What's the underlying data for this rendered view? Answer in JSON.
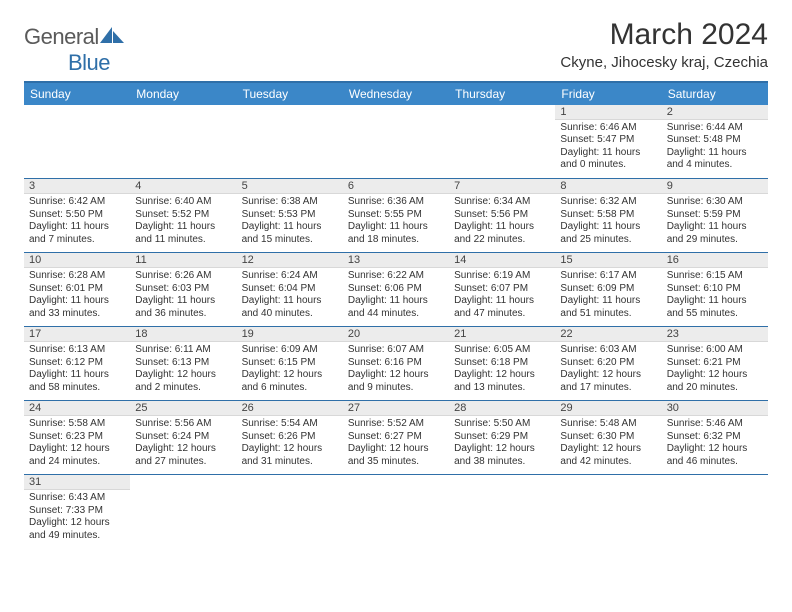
{
  "brand": {
    "text1": "General",
    "text2": "Blue"
  },
  "title": "March 2024",
  "location": "Ckyne, Jihocesky kraj, Czechia",
  "colors": {
    "header_bg": "#3b87c8",
    "header_text": "#ffffff",
    "daynum_bg": "#ececec",
    "rule": "#2f6fa8",
    "text": "#333333",
    "brand_gray": "#5a5a5a",
    "brand_blue": "#2f6fa8"
  },
  "weekdays": [
    "Sunday",
    "Monday",
    "Tuesday",
    "Wednesday",
    "Thursday",
    "Friday",
    "Saturday"
  ],
  "weeks": [
    [
      null,
      null,
      null,
      null,
      null,
      {
        "n": "1",
        "sunrise": "6:46 AM",
        "sunset": "5:47 PM",
        "day_h": "11",
        "day_m": "0"
      },
      {
        "n": "2",
        "sunrise": "6:44 AM",
        "sunset": "5:48 PM",
        "day_h": "11",
        "day_m": "4"
      }
    ],
    [
      {
        "n": "3",
        "sunrise": "6:42 AM",
        "sunset": "5:50 PM",
        "day_h": "11",
        "day_m": "7"
      },
      {
        "n": "4",
        "sunrise": "6:40 AM",
        "sunset": "5:52 PM",
        "day_h": "11",
        "day_m": "11"
      },
      {
        "n": "5",
        "sunrise": "6:38 AM",
        "sunset": "5:53 PM",
        "day_h": "11",
        "day_m": "15"
      },
      {
        "n": "6",
        "sunrise": "6:36 AM",
        "sunset": "5:55 PM",
        "day_h": "11",
        "day_m": "18"
      },
      {
        "n": "7",
        "sunrise": "6:34 AM",
        "sunset": "5:56 PM",
        "day_h": "11",
        "day_m": "22"
      },
      {
        "n": "8",
        "sunrise": "6:32 AM",
        "sunset": "5:58 PM",
        "day_h": "11",
        "day_m": "25"
      },
      {
        "n": "9",
        "sunrise": "6:30 AM",
        "sunset": "5:59 PM",
        "day_h": "11",
        "day_m": "29"
      }
    ],
    [
      {
        "n": "10",
        "sunrise": "6:28 AM",
        "sunset": "6:01 PM",
        "day_h": "11",
        "day_m": "33"
      },
      {
        "n": "11",
        "sunrise": "6:26 AM",
        "sunset": "6:03 PM",
        "day_h": "11",
        "day_m": "36"
      },
      {
        "n": "12",
        "sunrise": "6:24 AM",
        "sunset": "6:04 PM",
        "day_h": "11",
        "day_m": "40"
      },
      {
        "n": "13",
        "sunrise": "6:22 AM",
        "sunset": "6:06 PM",
        "day_h": "11",
        "day_m": "44"
      },
      {
        "n": "14",
        "sunrise": "6:19 AM",
        "sunset": "6:07 PM",
        "day_h": "11",
        "day_m": "47"
      },
      {
        "n": "15",
        "sunrise": "6:17 AM",
        "sunset": "6:09 PM",
        "day_h": "11",
        "day_m": "51"
      },
      {
        "n": "16",
        "sunrise": "6:15 AM",
        "sunset": "6:10 PM",
        "day_h": "11",
        "day_m": "55"
      }
    ],
    [
      {
        "n": "17",
        "sunrise": "6:13 AM",
        "sunset": "6:12 PM",
        "day_h": "11",
        "day_m": "58"
      },
      {
        "n": "18",
        "sunrise": "6:11 AM",
        "sunset": "6:13 PM",
        "day_h": "12",
        "day_m": "2"
      },
      {
        "n": "19",
        "sunrise": "6:09 AM",
        "sunset": "6:15 PM",
        "day_h": "12",
        "day_m": "6"
      },
      {
        "n": "20",
        "sunrise": "6:07 AM",
        "sunset": "6:16 PM",
        "day_h": "12",
        "day_m": "9"
      },
      {
        "n": "21",
        "sunrise": "6:05 AM",
        "sunset": "6:18 PM",
        "day_h": "12",
        "day_m": "13"
      },
      {
        "n": "22",
        "sunrise": "6:03 AM",
        "sunset": "6:20 PM",
        "day_h": "12",
        "day_m": "17"
      },
      {
        "n": "23",
        "sunrise": "6:00 AM",
        "sunset": "6:21 PM",
        "day_h": "12",
        "day_m": "20"
      }
    ],
    [
      {
        "n": "24",
        "sunrise": "5:58 AM",
        "sunset": "6:23 PM",
        "day_h": "12",
        "day_m": "24"
      },
      {
        "n": "25",
        "sunrise": "5:56 AM",
        "sunset": "6:24 PM",
        "day_h": "12",
        "day_m": "27"
      },
      {
        "n": "26",
        "sunrise": "5:54 AM",
        "sunset": "6:26 PM",
        "day_h": "12",
        "day_m": "31"
      },
      {
        "n": "27",
        "sunrise": "5:52 AM",
        "sunset": "6:27 PM",
        "day_h": "12",
        "day_m": "35"
      },
      {
        "n": "28",
        "sunrise": "5:50 AM",
        "sunset": "6:29 PM",
        "day_h": "12",
        "day_m": "38"
      },
      {
        "n": "29",
        "sunrise": "5:48 AM",
        "sunset": "6:30 PM",
        "day_h": "12",
        "day_m": "42"
      },
      {
        "n": "30",
        "sunrise": "5:46 AM",
        "sunset": "6:32 PM",
        "day_h": "12",
        "day_m": "46"
      }
    ],
    [
      {
        "n": "31",
        "sunrise": "6:43 AM",
        "sunset": "7:33 PM",
        "day_h": "12",
        "day_m": "49"
      },
      null,
      null,
      null,
      null,
      null,
      null
    ]
  ],
  "labels": {
    "sunrise": "Sunrise:",
    "sunset": "Sunset:",
    "daylight_prefix": "Daylight:",
    "hours": "hours",
    "and": "and",
    "minutes": "minutes."
  }
}
